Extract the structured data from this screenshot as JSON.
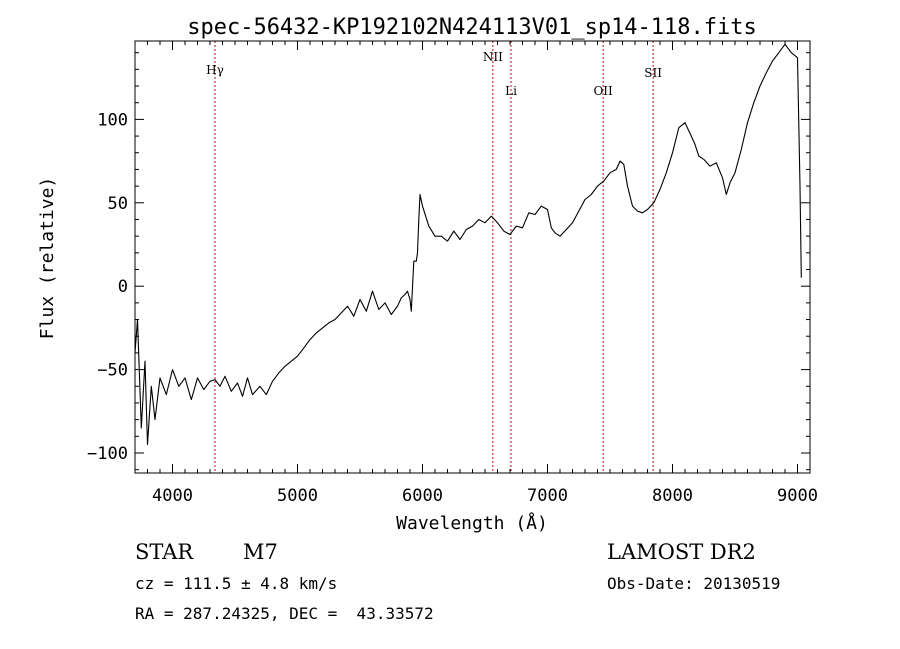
{
  "chart_data": {
    "type": "line",
    "title": "spec-56432-KP192102N424113V01_sp14-118.fits",
    "xlabel": "Wavelength (Å)",
    "ylabel": "Flux (relative)",
    "xlim": [
      3700,
      9100
    ],
    "ylim": [
      -112,
      147
    ],
    "x_ticks": [
      4000,
      5000,
      6000,
      7000,
      8000,
      9000
    ],
    "y_ticks": [
      -100,
      -50,
      0,
      50,
      100
    ],
    "y_tick_labels": [
      "−100",
      "−50",
      "0",
      "50",
      "100"
    ],
    "grid": false,
    "legend": "none",
    "series": [
      {
        "color": "#000000",
        "x": [
          3700,
          3720,
          3750,
          3780,
          3800,
          3830,
          3860,
          3900,
          3950,
          4000,
          4050,
          4100,
          4150,
          4200,
          4250,
          4300,
          4340,
          4380,
          4420,
          4470,
          4520,
          4560,
          4600,
          4640,
          4700,
          4750,
          4800,
          4850,
          4900,
          4950,
          5000,
          5050,
          5100,
          5150,
          5200,
          5250,
          5300,
          5350,
          5400,
          5450,
          5500,
          5550,
          5600,
          5650,
          5700,
          5750,
          5800,
          5830,
          5860,
          5880,
          5900,
          5910,
          5930,
          5950,
          5960,
          5970,
          5980,
          6000,
          6050,
          6100,
          6150,
          6200,
          6250,
          6300,
          6350,
          6400,
          6450,
          6500,
          6550,
          6600,
          6650,
          6700,
          6750,
          6800,
          6850,
          6900,
          6950,
          7000,
          7030,
          7060,
          7100,
          7150,
          7200,
          7250,
          7300,
          7350,
          7400,
          7450,
          7500,
          7550,
          7580,
          7610,
          7640,
          7680,
          7720,
          7760,
          7800,
          7850,
          7900,
          7950,
          8000,
          8050,
          8100,
          8150,
          8180,
          8210,
          8250,
          8300,
          8350,
          8400,
          8430,
          8460,
          8500,
          8550,
          8600,
          8650,
          8700,
          8750,
          8800,
          8850,
          8900,
          8950,
          9000,
          9020,
          9030
        ],
        "y": [
          -40,
          -20,
          -85,
          -45,
          -95,
          -60,
          -80,
          -55,
          -65,
          -50,
          -60,
          -55,
          -68,
          -55,
          -62,
          -57,
          -56,
          -60,
          -54,
          -63,
          -58,
          -66,
          -55,
          -65,
          -60,
          -65,
          -57,
          -52,
          -48,
          -45,
          -42,
          -37,
          -32,
          -28,
          -25,
          -22,
          -20,
          -16,
          -12,
          -18,
          -8,
          -15,
          -3,
          -14,
          -10,
          -17,
          -12,
          -7,
          -5,
          -3,
          -8,
          -15,
          15,
          15,
          20,
          40,
          55,
          48,
          36,
          30,
          30,
          27,
          33,
          28,
          34,
          36,
          40,
          38,
          42,
          38,
          33,
          31,
          36,
          35,
          44,
          43,
          48,
          46,
          35,
          32,
          30,
          34,
          38,
          45,
          52,
          55,
          60,
          63,
          68,
          70,
          75,
          73,
          60,
          48,
          45,
          44,
          46,
          50,
          58,
          68,
          80,
          95,
          98,
          90,
          85,
          78,
          76,
          72,
          74,
          65,
          55,
          62,
          68,
          82,
          98,
          110,
          120,
          128,
          135,
          140,
          145,
          140,
          137,
          60,
          5
        ]
      }
    ],
    "line_markers": [
      {
        "label": "Hγ",
        "x": 4340
      },
      {
        "label": "NII",
        "x": 6563
      },
      {
        "label": "Li",
        "x": 6708
      },
      {
        "label": "OII",
        "x": 7445
      },
      {
        "label": "SII",
        "x": 7845
      }
    ]
  },
  "info": {
    "class": "STAR",
    "subclass": "M7",
    "cz": "cz = 111.5 ± 4.8 km/s",
    "coords": "RA = 287.24325, DEC =  43.33572",
    "survey": "LAMOST DR2",
    "obs_date": "Obs-Date: 20130519"
  }
}
